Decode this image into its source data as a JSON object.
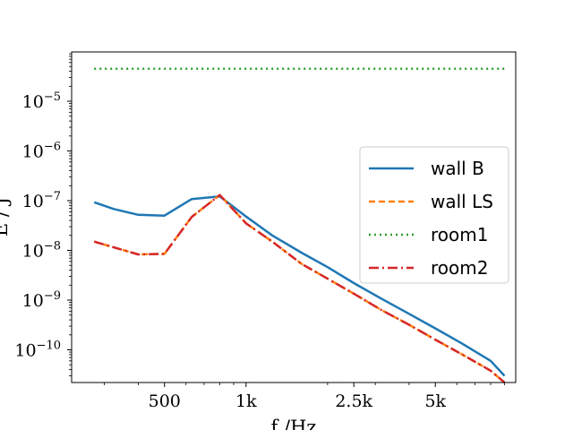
{
  "chart_data": {
    "type": "line",
    "xscale": "log",
    "yscale": "log",
    "xlim": [
      227,
      9900
    ],
    "ylim": [
      2.2e-11,
      9.8e-05
    ],
    "xlabel": "f /Hz",
    "ylabel": "E / J",
    "xticks": [
      {
        "value": 500,
        "label": "500"
      },
      {
        "value": 1000,
        "label": "1k"
      },
      {
        "value": 2500,
        "label": "2.5k"
      },
      {
        "value": 5000,
        "label": "5k"
      }
    ],
    "yticks": [
      {
        "value": 1e-10,
        "base": "10",
        "exp": "−10"
      },
      {
        "value": 1e-09,
        "base": "10",
        "exp": "−9"
      },
      {
        "value": 1e-08,
        "base": "10",
        "exp": "−8"
      },
      {
        "value": 1e-07,
        "base": "10",
        "exp": "−7"
      },
      {
        "value": 1e-06,
        "base": "10",
        "exp": "−6"
      },
      {
        "value": 1e-05,
        "base": "10",
        "exp": "−5"
      }
    ],
    "grid": false,
    "legend_position": "center-right",
    "series": [
      {
        "name": "wall B",
        "color": "#1f77b4",
        "dash": "solid",
        "x": [
          275,
          325,
          400,
          500,
          630,
          800,
          1000,
          1250,
          1600,
          2000,
          2500,
          3150,
          4000,
          5000,
          6300,
          8000,
          9000
        ],
        "y": [
          9.3e-08,
          6.8e-08,
          5.2e-08,
          5e-08,
          1.08e-07,
          1.22e-07,
          4.8e-08,
          2e-08,
          9e-09,
          4.6e-09,
          2.2e-09,
          1.08e-09,
          5.3e-10,
          2.7e-10,
          1.32e-10,
          6e-11,
          3e-11
        ]
      },
      {
        "name": "wall LS",
        "color": "#ff7f0e",
        "dash": "dashed",
        "x": [
          275,
          325,
          400,
          500,
          630,
          800,
          1000,
          1250,
          1600,
          2000,
          2500,
          3150,
          4000,
          5000,
          6300,
          8000,
          9000
        ],
        "y": [
          1.5e-08,
          1.15e-08,
          8.3e-09,
          8.5e-09,
          4.7e-08,
          1.3e-07,
          3.5e-08,
          1.5e-08,
          5.4e-09,
          2.7e-09,
          1.35e-09,
          6.4e-10,
          3.2e-10,
          1.6e-10,
          8e-11,
          3.8e-11,
          2.2e-11
        ]
      },
      {
        "name": "room1",
        "color": "#2ca02c",
        "dash": "dotted",
        "x": [
          275,
          500,
          1000,
          2000,
          5000,
          9000
        ],
        "y": [
          4.5e-05,
          4.5e-05,
          4.5e-05,
          4.5e-05,
          4.5e-05,
          4.5e-05
        ]
      },
      {
        "name": "room2",
        "color": "#d62728",
        "dash": "dashdot",
        "x": [
          275,
          325,
          400,
          500,
          630,
          800,
          1000,
          1250,
          1600,
          2000,
          2500,
          3150,
          4000,
          5000,
          6300,
          8000,
          9000
        ],
        "y": [
          1.5e-08,
          1.15e-08,
          8.3e-09,
          8.5e-09,
          4.7e-08,
          1.3e-07,
          3.5e-08,
          1.5e-08,
          5.4e-09,
          2.7e-09,
          1.35e-09,
          6.4e-10,
          3.2e-10,
          1.6e-10,
          8e-11,
          3.8e-11,
          2.2e-11
        ]
      }
    ]
  }
}
